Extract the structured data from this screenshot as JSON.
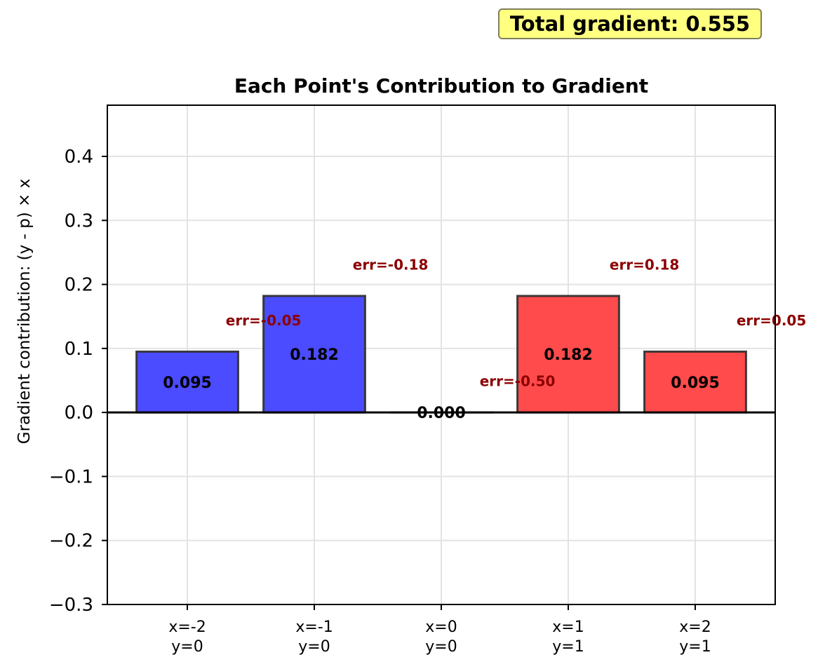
{
  "chart_data": {
    "type": "bar",
    "title": "Each Point's Contribution to Gradient",
    "xlabel": "",
    "ylabel": "Gradient contribution: (y - p) × x",
    "ylim": [
      -0.3,
      0.48
    ],
    "xlim": [
      -0.63,
      4.63
    ],
    "yticks": [
      -0.3,
      -0.2,
      -0.1,
      0.0,
      0.1,
      0.2,
      0.3,
      0.4
    ],
    "ytick_labels": [
      "−0.3",
      "−0.2",
      "−0.1",
      "0.0",
      "0.1",
      "0.2",
      "0.3",
      "0.4"
    ],
    "grid": true,
    "categories": [
      {
        "line1": "x=-2",
        "line2": "y=0"
      },
      {
        "line1": "x=-1",
        "line2": "y=0"
      },
      {
        "line1": "x=0",
        "line2": "y=0"
      },
      {
        "line1": "x=1",
        "line2": "y=1"
      },
      {
        "line1": "x=2",
        "line2": "y=1"
      }
    ],
    "values": [
      0.095,
      0.182,
      0.0,
      0.182,
      0.095
    ],
    "value_labels": [
      "0.095",
      "0.182",
      "0.000",
      "0.182",
      "0.095"
    ],
    "bar_colors": [
      "#4b4bff",
      "#4b4bff",
      "#4b4bff",
      "#ff4b4b",
      "#ff4b4b"
    ],
    "error_labels": [
      "err=-0.05",
      "err=-0.18",
      "err=-0.50",
      "err=0.18",
      "err=0.05"
    ],
    "error_label_color": "#8b0000",
    "annotation": "Total gradient: 0.555"
  }
}
